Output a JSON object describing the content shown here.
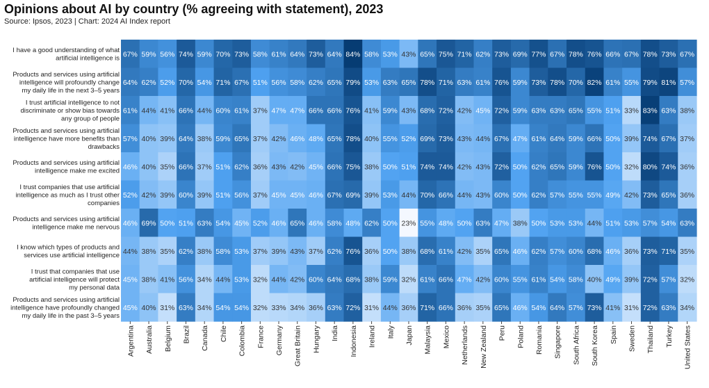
{
  "title": "Opinions about AI by country (% agreeing with statement), 2023",
  "subtitle": "Source: Ipsos, 2023 | Chart: 2024 AI Index report",
  "chart_data": {
    "type": "heatmap",
    "value_suffix": "%",
    "colors": {
      "low": "#f4f8ff",
      "mid": "#4fa2f1",
      "high": "#063c73",
      "label_dark": "#333333",
      "label_light": "#ffffff"
    },
    "countries": [
      "Argentina",
      "Australia",
      "Belgium",
      "Brazil",
      "Canada",
      "Chile",
      "Colombia",
      "France",
      "Germany",
      "Great Britain",
      "Hungary",
      "India",
      "Indonesia",
      "Ireland",
      "Italy",
      "Japan",
      "Malaysia",
      "Mexico",
      "Netherlands",
      "New Zealand",
      "Peru",
      "Poland",
      "Romania",
      "Singapore",
      "South Africa",
      "South Korea",
      "Spain",
      "Sweden",
      "Thailand",
      "Turkey",
      "United States"
    ],
    "statements": [
      [
        "I have a good understanding of what",
        "artificial intelligence is"
      ],
      [
        "Products and services using artificial",
        "intelligence will profoundly change",
        "my daily life in the next 3–5 years"
      ],
      [
        "I trust artificial intelligence to not",
        "discriminate or show bias towards",
        "any group of people"
      ],
      [
        "Products and services using artificial",
        "intelligence have more benefits than",
        "drawbacks"
      ],
      [
        "Products and services using artificial",
        "intelligence make me excited"
      ],
      [
        "I trust companies that use artificial",
        "intelligence as much as I trust other",
        "companies"
      ],
      [
        "Products and services using artificial",
        "intelligence make me nervous"
      ],
      [
        "I know which types of products and",
        "services use artificial intelligence"
      ],
      [
        "I trust that companies that use",
        "artificial intelligence will protect",
        "my personal data"
      ],
      [
        "Products and services using artificial",
        "intelligence have profoundly changed",
        "my daily life in the past 3–5 years"
      ]
    ],
    "values": [
      [
        67,
        59,
        56,
        74,
        59,
        70,
        73,
        58,
        61,
        64,
        73,
        64,
        84,
        58,
        53,
        43,
        65,
        75,
        71,
        62,
        73,
        69,
        77,
        67,
        78,
        76,
        66,
        67,
        78,
        73,
        67
      ],
      [
        64,
        62,
        52,
        70,
        54,
        71,
        67,
        51,
        56,
        58,
        62,
        65,
        79,
        53,
        63,
        65,
        78,
        71,
        63,
        61,
        76,
        59,
        73,
        78,
        70,
        82,
        61,
        55,
        79,
        81,
        57
      ],
      [
        61,
        44,
        41,
        66,
        44,
        60,
        61,
        37,
        47,
        47,
        66,
        66,
        76,
        41,
        59,
        43,
        68,
        72,
        42,
        45,
        72,
        59,
        63,
        63,
        65,
        55,
        51,
        33,
        83,
        63,
        38
      ],
      [
        57,
        40,
        39,
        64,
        38,
        59,
        65,
        37,
        42,
        46,
        48,
        65,
        78,
        40,
        55,
        52,
        69,
        73,
        43,
        44,
        67,
        47,
        61,
        64,
        59,
        66,
        50,
        39,
        74,
        67,
        37
      ],
      [
        46,
        40,
        35,
        66,
        37,
        51,
        62,
        36,
        43,
        42,
        45,
        66,
        75,
        38,
        50,
        51,
        74,
        74,
        42,
        43,
        72,
        50,
        62,
        65,
        59,
        76,
        50,
        32,
        80,
        74,
        36
      ],
      [
        52,
        42,
        39,
        60,
        39,
        51,
        56,
        37,
        45,
        45,
        46,
        67,
        69,
        39,
        53,
        44,
        70,
        66,
        44,
        43,
        60,
        50,
        62,
        57,
        55,
        55,
        49,
        42,
        73,
        65,
        36
      ],
      [
        46,
        69,
        50,
        51,
        63,
        54,
        45,
        52,
        46,
        65,
        46,
        58,
        48,
        62,
        50,
        23,
        55,
        48,
        50,
        63,
        47,
        38,
        50,
        53,
        53,
        44,
        51,
        53,
        57,
        54,
        63
      ],
      [
        44,
        38,
        35,
        62,
        38,
        58,
        53,
        37,
        39,
        43,
        37,
        62,
        76,
        36,
        50,
        38,
        68,
        61,
        42,
        35,
        65,
        46,
        62,
        57,
        60,
        68,
        46,
        36,
        73,
        71,
        35
      ],
      [
        45,
        38,
        41,
        56,
        34,
        44,
        53,
        32,
        44,
        42,
        60,
        64,
        68,
        38,
        59,
        32,
        61,
        66,
        47,
        42,
        60,
        55,
        61,
        54,
        58,
        40,
        49,
        39,
        72,
        57,
        32
      ],
      [
        45,
        40,
        31,
        63,
        34,
        54,
        54,
        32,
        33,
        34,
        36,
        63,
        72,
        31,
        44,
        36,
        71,
        66,
        36,
        35,
        65,
        46,
        54,
        64,
        57,
        73,
        41,
        31,
        72,
        63,
        34
      ]
    ]
  }
}
